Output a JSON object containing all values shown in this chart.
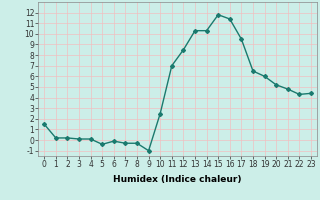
{
  "x": [
    0,
    1,
    2,
    3,
    4,
    5,
    6,
    7,
    8,
    9,
    10,
    11,
    12,
    13,
    14,
    15,
    16,
    17,
    18,
    19,
    20,
    21,
    22,
    23
  ],
  "y": [
    1.5,
    0.2,
    0.2,
    0.1,
    0.1,
    -0.4,
    -0.1,
    -0.3,
    -0.3,
    -1.0,
    2.5,
    7.0,
    8.5,
    10.3,
    10.3,
    11.8,
    11.4,
    9.5,
    6.5,
    6.0,
    5.2,
    4.8,
    4.3,
    4.4
  ],
  "xlim": [
    -0.5,
    23.5
  ],
  "ylim": [
    -1.5,
    13.0
  ],
  "yticks": [
    -1,
    0,
    1,
    2,
    3,
    4,
    5,
    6,
    7,
    8,
    9,
    10,
    11,
    12
  ],
  "xticks": [
    0,
    1,
    2,
    3,
    4,
    5,
    6,
    7,
    8,
    9,
    10,
    11,
    12,
    13,
    14,
    15,
    16,
    17,
    18,
    19,
    20,
    21,
    22,
    23
  ],
  "xlabel": "Humidex (Indice chaleur)",
  "line_color": "#1a7a6e",
  "marker": "D",
  "marker_size": 2.0,
  "bg_color": "#cceee8",
  "grid_color": "#f0c0c0",
  "tick_label_fontsize": 5.5,
  "xlabel_fontsize": 6.5,
  "line_width": 1.0
}
